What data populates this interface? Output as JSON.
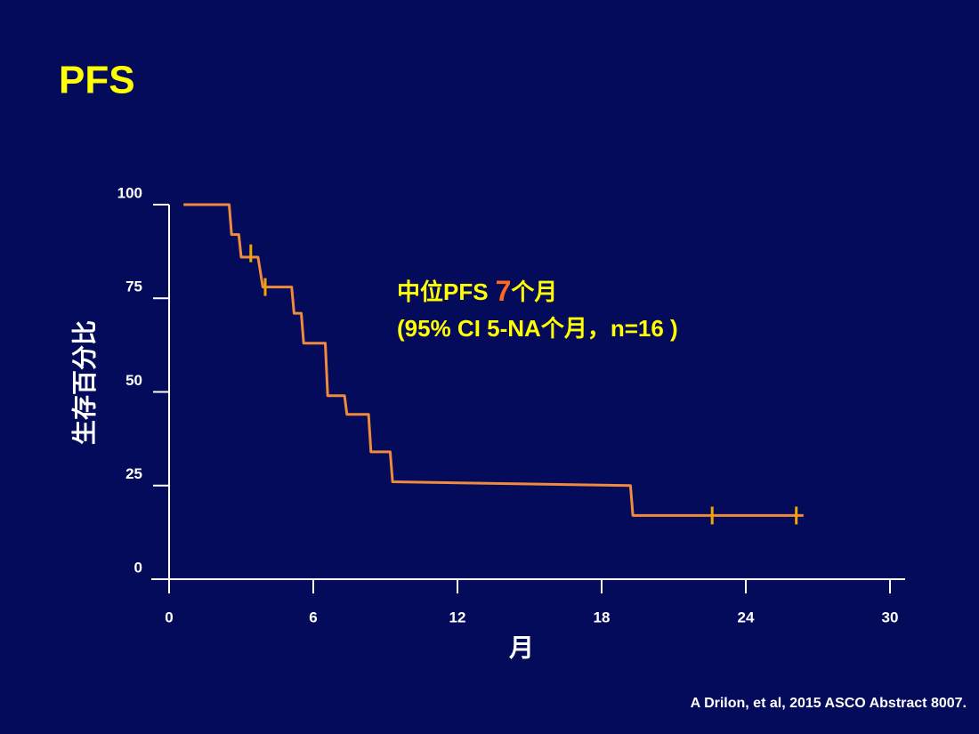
{
  "chart_data": {
    "type": "line",
    "title": "PFS",
    "xlabel": "月",
    "ylabel": "生存百分比",
    "annotation": {
      "prefix": "中位PFS",
      "highlight": "7",
      "suffix": "个月",
      "line2": "(95% CI 5-NA个月，n=16 )"
    },
    "source": "A Drilon, et al, 2015 ASCO Abstract 8007.",
    "xlim": [
      0,
      30
    ],
    "xticks": [
      0,
      6,
      12,
      18,
      24,
      30
    ],
    "ylim": [
      0,
      100
    ],
    "yticks": [
      0,
      25,
      50,
      75,
      100
    ],
    "grid": false,
    "curve": {
      "color": "#f08a3c",
      "x": [
        0.6,
        2.5,
        2.6,
        2.9,
        3.0,
        3.7,
        3.9,
        5.1,
        5.2,
        5.5,
        5.6,
        6.5,
        6.6,
        7.3,
        7.4,
        8.3,
        8.4,
        9.2,
        9.3,
        19.2,
        19.3,
        19.8,
        26.4
      ],
      "values": [
        100,
        100,
        92,
        92,
        86,
        86,
        78,
        78,
        71,
        71,
        63,
        63,
        49,
        49,
        44,
        44,
        34,
        34,
        26,
        25,
        17,
        17,
        17
      ]
    },
    "censors": {
      "color": "#f0a800",
      "x": [
        3.4,
        4.0,
        22.6,
        26.1
      ],
      "values": [
        87,
        78,
        17,
        17
      ]
    }
  }
}
